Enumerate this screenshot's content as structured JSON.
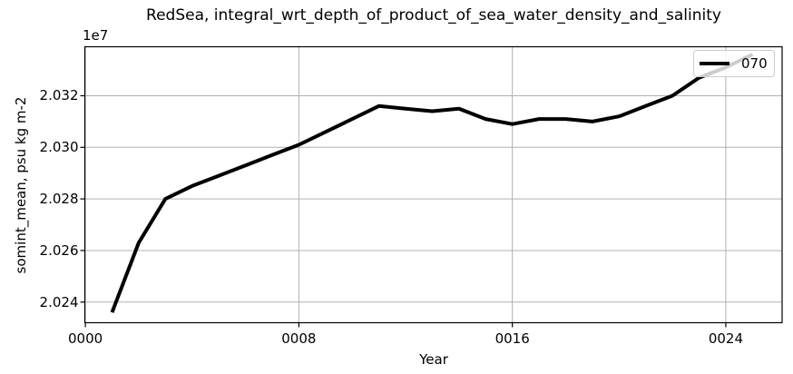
{
  "chart_data": {
    "type": "line",
    "title": "RedSea, integral_wrt_depth_of_product_of_sea_water_density_and_salinity",
    "xlabel": "Year",
    "ylabel": "somint_mean, psu kg m-2",
    "y_offset_label": "1e7",
    "value_multiplier": 10000000,
    "x": [
      1,
      2,
      3,
      4,
      5,
      6,
      7,
      8,
      9,
      10,
      11,
      12,
      13,
      14,
      15,
      16,
      17,
      18,
      19,
      20,
      21,
      22,
      23,
      24,
      25
    ],
    "series": [
      {
        "name": "070",
        "color": "#000000",
        "line_width": 4,
        "values": [
          2.0236,
          2.0263,
          2.028,
          2.0285,
          2.0289,
          2.0293,
          2.0297,
          2.0301,
          2.0306,
          2.0311,
          2.0316,
          2.0315,
          2.0314,
          2.0315,
          2.0311,
          2.0309,
          2.0311,
          2.0311,
          2.031,
          2.0312,
          2.0316,
          2.032,
          2.0327,
          2.0331,
          2.0336
        ]
      }
    ],
    "xticks": {
      "positions": [
        0,
        8,
        16,
        24
      ],
      "labels": [
        "0000",
        "0008",
        "0016",
        "0024"
      ]
    },
    "yticks": {
      "positions": [
        2.024,
        2.026,
        2.028,
        2.03,
        2.032
      ],
      "labels": [
        "2.024",
        "2.026",
        "2.028",
        "2.030",
        "2.032"
      ]
    },
    "xlim": [
      -0.02,
      26.11
    ],
    "ylim": [
      2.0232,
      2.0339
    ],
    "grid": true,
    "grid_color": "#b0b0b0",
    "spine_color": "#000000",
    "background_color": "#ffffff",
    "legend": {
      "position": "upper right",
      "label": "070"
    }
  }
}
